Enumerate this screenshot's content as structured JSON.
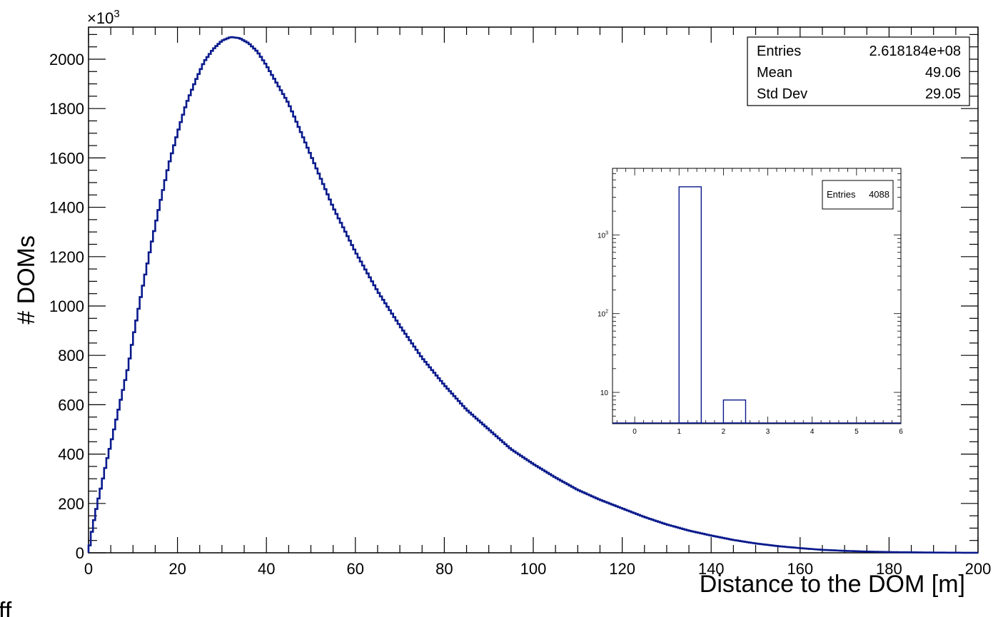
{
  "chart_data": [
    {
      "type": "histogram",
      "title": "",
      "xlabel": "Distance to the DOM [m]",
      "ylabel": "# DOMs",
      "y_exponent": "×10",
      "y_exponent_power": "3",
      "xlim": [
        0,
        200
      ],
      "ylim": [
        0,
        2130
      ],
      "x_ticks": [
        0,
        20,
        40,
        60,
        80,
        100,
        120,
        140,
        160,
        180,
        200
      ],
      "x_tick_labels": [
        "0",
        "20",
        "40",
        "60",
        "80",
        "100",
        "120",
        "140",
        "160",
        "180",
        "200"
      ],
      "y_ticks": [
        0,
        200,
        400,
        600,
        800,
        1000,
        1200,
        1400,
        1600,
        1800,
        2000
      ],
      "y_tick_labels": [
        "0",
        "200",
        "400",
        "600",
        "800",
        "1000",
        "1200",
        "1400",
        "1600",
        "1800",
        "2000"
      ],
      "bin_width": 0.5,
      "curve_points": [
        [
          0,
          0
        ],
        [
          0.5,
          60
        ],
        [
          1,
          110
        ],
        [
          2,
          200
        ],
        [
          3,
          280
        ],
        [
          4,
          365
        ],
        [
          5,
          440
        ],
        [
          6,
          520
        ],
        [
          7,
          600
        ],
        [
          8,
          680
        ],
        [
          9,
          760
        ],
        [
          10,
          870
        ],
        [
          12,
          1060
        ],
        [
          14,
          1240
        ],
        [
          16,
          1410
        ],
        [
          18,
          1570
        ],
        [
          20,
          1700
        ],
        [
          22,
          1820
        ],
        [
          24,
          1910
        ],
        [
          26,
          1990
        ],
        [
          28,
          2040
        ],
        [
          30,
          2075
        ],
        [
          32,
          2090
        ],
        [
          34,
          2085
        ],
        [
          36,
          2065
        ],
        [
          38,
          2030
        ],
        [
          40,
          1975
        ],
        [
          45,
          1820
        ],
        [
          50,
          1610
        ],
        [
          55,
          1400
        ],
        [
          60,
          1220
        ],
        [
          65,
          1060
        ],
        [
          70,
          920
        ],
        [
          75,
          790
        ],
        [
          80,
          680
        ],
        [
          85,
          580
        ],
        [
          90,
          500
        ],
        [
          95,
          420
        ],
        [
          100,
          360
        ],
        [
          105,
          305
        ],
        [
          110,
          255
        ],
        [
          115,
          215
        ],
        [
          120,
          180
        ],
        [
          125,
          145
        ],
        [
          130,
          115
        ],
        [
          135,
          90
        ],
        [
          140,
          70
        ],
        [
          145,
          52
        ],
        [
          150,
          38
        ],
        [
          155,
          27
        ],
        [
          160,
          19
        ],
        [
          165,
          12
        ],
        [
          170,
          8
        ],
        [
          175,
          5
        ],
        [
          180,
          3
        ],
        [
          190,
          1
        ],
        [
          200,
          0
        ]
      ],
      "color": "#0a1a8c",
      "grid": false,
      "stats": {
        "rows": [
          {
            "label": "Entries",
            "value": "2.618184e+08"
          },
          {
            "label": "Mean",
            "value": "49.06"
          },
          {
            "label": "Std Dev",
            "value": "29.05"
          }
        ],
        "placement": "top-right"
      }
    },
    {
      "type": "histogram",
      "title": "",
      "xlabel": "",
      "ylabel": "",
      "log_y": true,
      "xlim": [
        -0.5,
        6
      ],
      "ylim": [
        4,
        7000
      ],
      "x_ticks": [
        0,
        1,
        2,
        3,
        4,
        5,
        6
      ],
      "x_tick_labels": [
        "0",
        "1",
        "2",
        "3",
        "4",
        "5",
        "6"
      ],
      "y_ticks": [
        10,
        100,
        1000
      ],
      "y_tick_labels": [
        "10",
        "10",
        "10"
      ],
      "y_tick_powers": [
        "",
        "2",
        "3"
      ],
      "bars": [
        {
          "x0": 1.0,
          "x1": 1.5,
          "value": 4080
        },
        {
          "x0": 2.0,
          "x1": 2.5,
          "value": 8
        }
      ],
      "color": "#0a1a8c",
      "stats": {
        "rows": [
          {
            "label": "Entries",
            "value": "4088"
          }
        ],
        "placement": "top-right"
      }
    }
  ],
  "cut_text": "ff"
}
